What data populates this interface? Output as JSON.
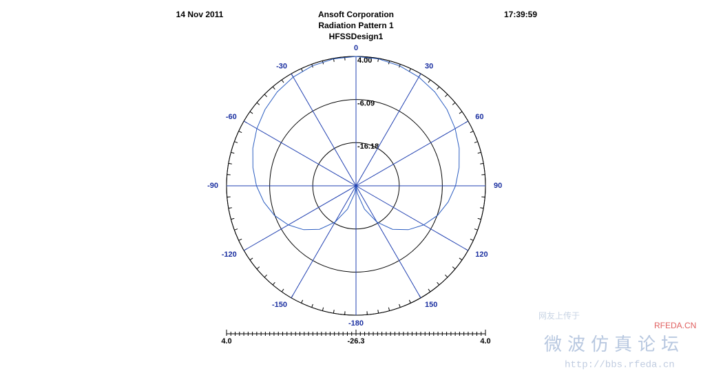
{
  "chart_data": {
    "type": "polar",
    "date": "14 Nov 2011",
    "time": "17:39:59",
    "title": "Ansoft Corporation",
    "subtitle": "Radiation Pattern 1",
    "design": "HFSSDesign1",
    "rlim": [
      {
        "value": -26.3,
        "label": "-26.3"
      },
      {
        "value": 4,
        "label": "4.0"
      }
    ],
    "rticks": [
      {
        "value": 4,
        "label": "4.00"
      },
      -6.09,
      -16.18
    ],
    "thetaticks": [
      0,
      30,
      60,
      90,
      120,
      150,
      -180,
      -150,
      -120,
      -90,
      -60,
      -30
    ],
    "series": [
      {
        "color": "#2a5cc0",
        "theta": [
          -180,
          -170,
          -160,
          -150,
          -140,
          -130,
          -120,
          -110,
          -100,
          -90,
          -80,
          -70,
          -60,
          -50,
          -40,
          -30,
          -20,
          -10,
          0,
          10,
          20,
          30,
          40,
          50,
          60,
          70,
          80,
          90,
          100,
          110,
          120,
          130,
          140,
          150,
          160,
          170,
          180
        ],
        "values": [
          -26.2,
          -24.5,
          -20.5,
          -16.5,
          -13,
          -10.3,
          -8,
          -6,
          -4.4,
          -3,
          -1.8,
          -0.6,
          0.5,
          1.5,
          2.4,
          3.1,
          3.6,
          3.9,
          4,
          3.9,
          3.6,
          3.1,
          2.4,
          1.5,
          0.5,
          -0.6,
          -1.8,
          -3,
          -4.4,
          -6,
          -8,
          -10.3,
          -13,
          -16.5,
          -20.5,
          -24.5,
          -26.2
        ]
      }
    ],
    "ring_color": "#000000",
    "spoke_color": "#1f3fb0",
    "watermark": {
      "caption": "网友上传于",
      "site": "RFEDA.CN",
      "name": "微波仿真论坛",
      "url": "http://bbs.rfeda.cn"
    }
  }
}
